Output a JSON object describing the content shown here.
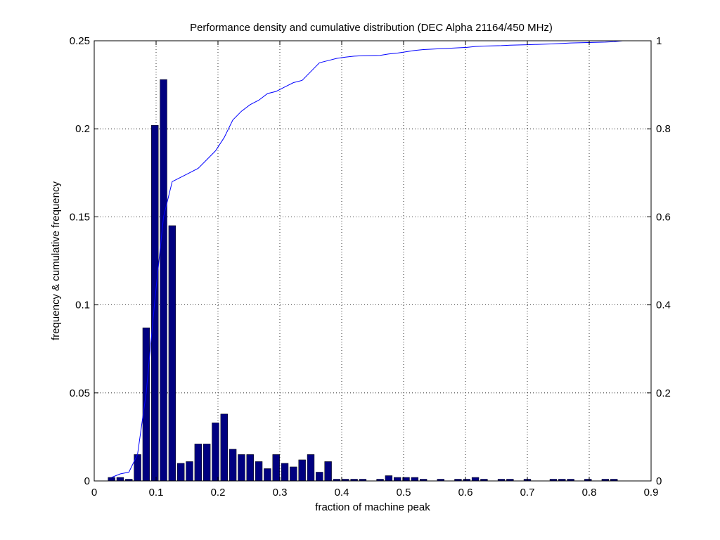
{
  "chart_data": {
    "type": "bar",
    "title": "Performance density and cumulative distribution (DEC Alpha 21164/450 MHz)",
    "xlabel": "fraction of machine peak",
    "ylabel": "frequency & cumulative frequency",
    "y2label": "",
    "xlim": [
      0,
      0.9
    ],
    "ylim": [
      0,
      0.25
    ],
    "y2lim": [
      0,
      1
    ],
    "grid": true,
    "bar_color": "#000080",
    "line_color": "#0000ff",
    "x_ticks": [
      "0",
      "0.1",
      "0.2",
      "0.3",
      "0.4",
      "0.5",
      "0.6",
      "0.7",
      "0.8",
      "0.9"
    ],
    "y_ticks": [
      "0",
      "0.05",
      "0.1",
      "0.15",
      "0.2",
      "0.25"
    ],
    "y2_ticks": [
      "0",
      "0.2",
      "0.4",
      "0.6",
      "0.8",
      "1"
    ],
    "series": [
      {
        "type": "bar",
        "x": [
          0.028,
          0.042,
          0.056,
          0.07,
          0.084,
          0.098,
          0.112,
          0.126,
          0.14,
          0.154,
          0.168,
          0.182,
          0.196,
          0.21,
          0.224,
          0.238,
          0.252,
          0.266,
          0.28,
          0.294,
          0.308,
          0.322,
          0.336,
          0.35,
          0.364,
          0.378,
          0.392,
          0.406,
          0.42,
          0.434,
          0.462,
          0.476,
          0.49,
          0.504,
          0.518,
          0.532,
          0.56,
          0.588,
          0.602,
          0.616,
          0.63,
          0.658,
          0.672,
          0.7,
          0.742,
          0.756,
          0.77,
          0.798,
          0.826,
          0.84
        ],
        "values": [
          0.002,
          0.002,
          0.001,
          0.015,
          0.087,
          0.202,
          0.228,
          0.145,
          0.01,
          0.011,
          0.021,
          0.021,
          0.033,
          0.038,
          0.018,
          0.015,
          0.015,
          0.011,
          0.007,
          0.015,
          0.01,
          0.008,
          0.012,
          0.015,
          0.005,
          0.011,
          0.001,
          0.001,
          0.001,
          0.001,
          0.001,
          0.003,
          0.002,
          0.002,
          0.002,
          0.001,
          0.001,
          0.001,
          0.001,
          0.002,
          0.001,
          0.001,
          0.001,
          0.001,
          0.001,
          0.001,
          0.001,
          0.001,
          0.001,
          0.001
        ]
      },
      {
        "type": "line",
        "axis": "right",
        "x": [
          0.028,
          0.042,
          0.056,
          0.07,
          0.084,
          0.098,
          0.112,
          0.126,
          0.14,
          0.154,
          0.168,
          0.182,
          0.196,
          0.21,
          0.224,
          0.238,
          0.252,
          0.266,
          0.28,
          0.294,
          0.308,
          0.322,
          0.336,
          0.35,
          0.364,
          0.378,
          0.392,
          0.406,
          0.42,
          0.434,
          0.462,
          0.476,
          0.49,
          0.504,
          0.518,
          0.532,
          0.56,
          0.588,
          0.602,
          0.616,
          0.63,
          0.658,
          0.672,
          0.7,
          0.742,
          0.756,
          0.77,
          0.798,
          0.826,
          0.84,
          0.854
        ],
        "values": [
          0.008,
          0.016,
          0.02,
          0.06,
          0.2,
          0.41,
          0.6,
          0.68,
          0.69,
          0.7,
          0.71,
          0.73,
          0.75,
          0.78,
          0.82,
          0.84,
          0.855,
          0.865,
          0.88,
          0.885,
          0.895,
          0.905,
          0.91,
          0.93,
          0.95,
          0.955,
          0.96,
          0.963,
          0.965,
          0.966,
          0.967,
          0.97,
          0.972,
          0.975,
          0.978,
          0.98,
          0.982,
          0.984,
          0.985,
          0.987,
          0.988,
          0.989,
          0.99,
          0.991,
          0.993,
          0.994,
          0.995,
          0.996,
          0.997,
          0.998,
          1.0
        ]
      }
    ]
  }
}
